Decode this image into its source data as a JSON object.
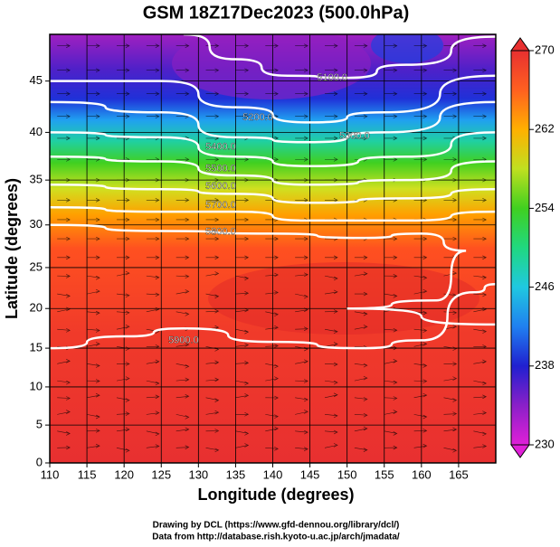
{
  "chart_data": {
    "type": "map",
    "title": "GSM 18Z17Dec2023 (500.0hPa)",
    "x_label": "Longitude (degrees)",
    "y_label": "Latitude  (degrees)",
    "xlim": [
      110,
      170
    ],
    "ylim": [
      0,
      49.2
    ],
    "xticks": [
      110,
      115,
      120,
      125,
      130,
      135,
      140,
      145,
      150,
      155,
      160,
      165
    ],
    "yticks": [
      0,
      5,
      10,
      15,
      20,
      25,
      30,
      35,
      40,
      45
    ],
    "grid": true,
    "colorbar": {
      "lim": [
        230,
        270
      ],
      "ticks": [
        230,
        238,
        246,
        254,
        262,
        270
      ]
    },
    "contours": [
      {
        "value": 5100,
        "label": "5100.0"
      },
      {
        "value": 5200,
        "label": "5200.0"
      },
      {
        "value": 5300,
        "label": "5300.0"
      },
      {
        "value": 5400,
        "label": "5400.0"
      },
      {
        "value": 5500,
        "label": "5500.0"
      },
      {
        "value": 5600,
        "label": "5600.0"
      },
      {
        "value": 5700,
        "label": "5700.0"
      },
      {
        "value": 5800,
        "label": "5800.0"
      },
      {
        "value": 5900,
        "label": "5900.0"
      }
    ],
    "credits": [
      "Drawing by DCL (https://www.gfd-dennou.org/library/dcl/)",
      "Data from http://database.rish.kyoto-u.ac.jp/arch/jmadata/"
    ]
  }
}
